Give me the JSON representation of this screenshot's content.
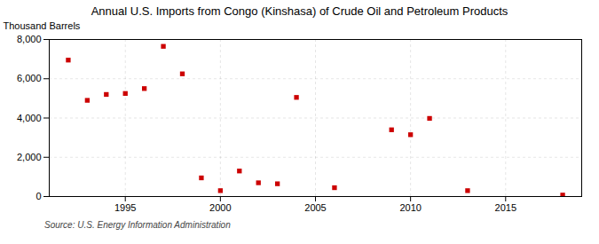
{
  "chart_data": {
    "type": "scatter",
    "title": "Annual U.S. Imports from Congo (Kinshasa) of Crude Oil and Petroleum Products",
    "ylabel": "Thousand Barrels",
    "source": "Source: U.S. Energy Information Administration",
    "x": [
      1992,
      1993,
      1994,
      1995,
      1996,
      1997,
      1998,
      1999,
      2000,
      2001,
      2002,
      2003,
      2004,
      2006,
      2009,
      2010,
      2011,
      2013,
      2018
    ],
    "values": [
      6950,
      4900,
      5200,
      5250,
      5500,
      7650,
      6250,
      950,
      300,
      1300,
      700,
      650,
      5050,
      450,
      3400,
      3150,
      3980,
      300,
      75
    ],
    "color": "#cc0000",
    "marker": "square",
    "xlim": [
      1991,
      2019
    ],
    "xticks": [
      1995,
      2000,
      2005,
      2010,
      2015
    ],
    "ylim": [
      0,
      8000
    ],
    "yticks": [
      0,
      {
        "value": 2000,
        "label": "2,000"
      },
      {
        "value": 4000,
        "label": "4,000"
      },
      {
        "value": 6000,
        "label": "6,000"
      },
      {
        "value": 8000,
        "label": "8,000"
      }
    ],
    "grid": true
  }
}
